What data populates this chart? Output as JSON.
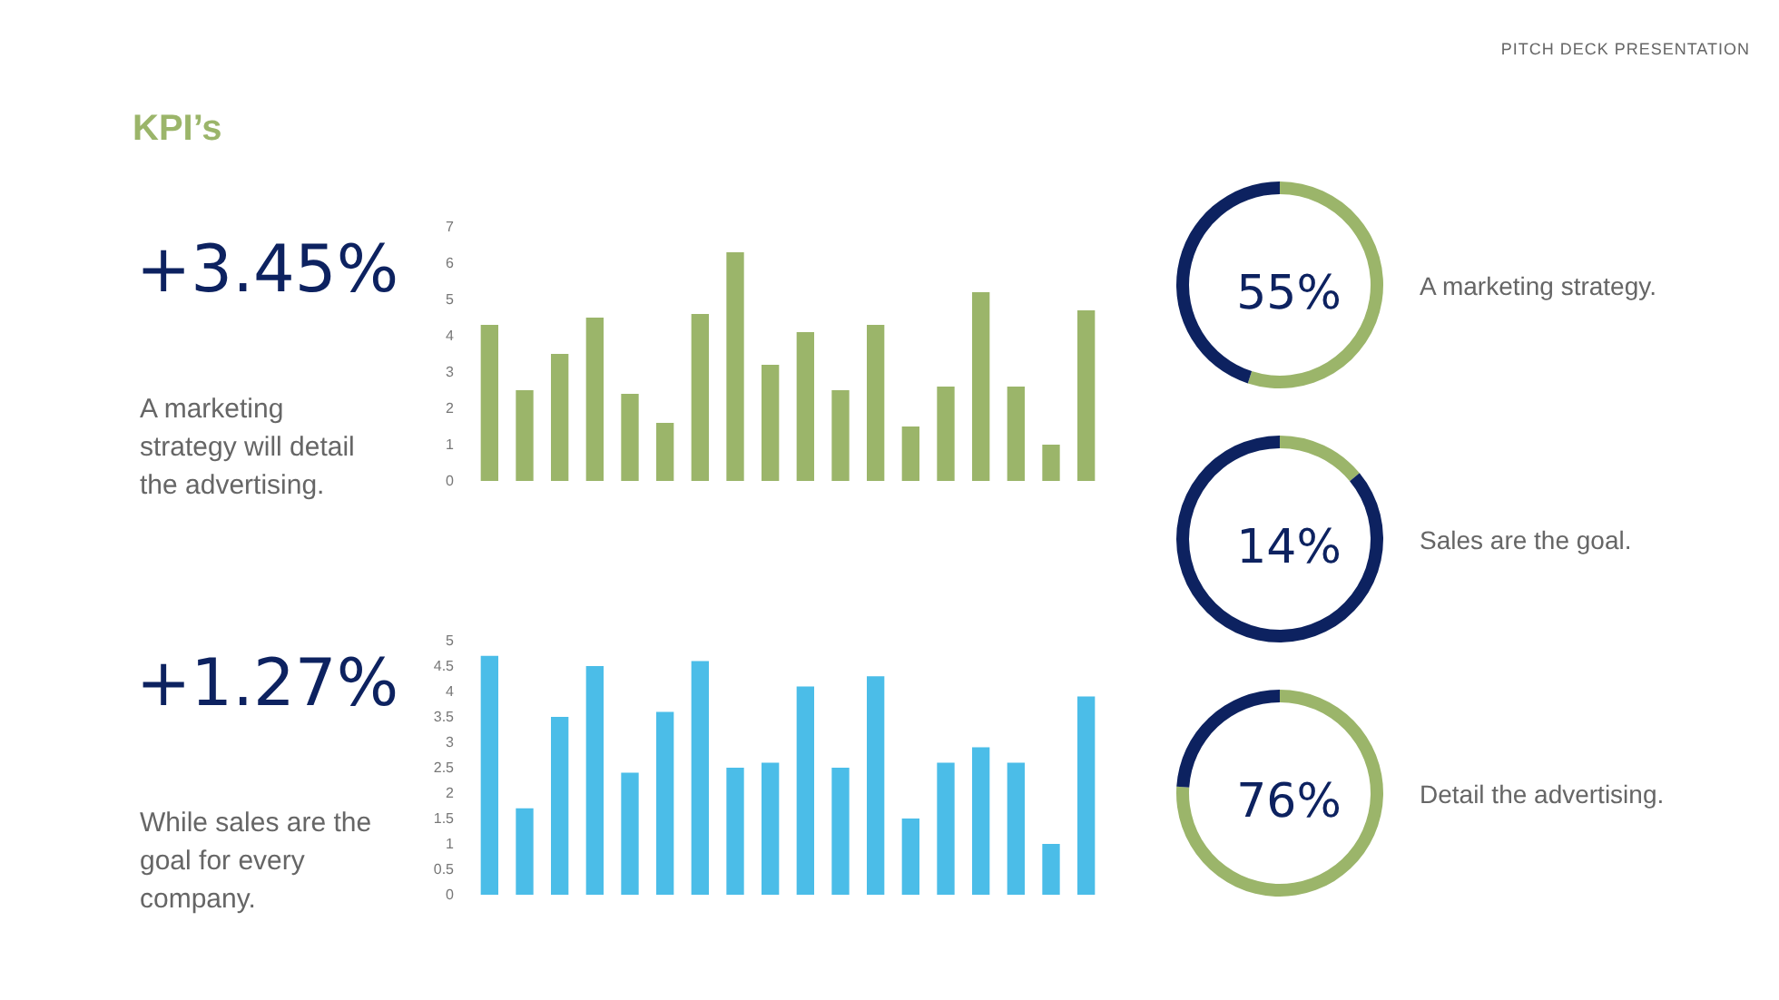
{
  "chart_data": [
    {
      "type": "other",
      "title": "KPI’s",
      "annotations": [
        "PITCH DECK PRESENTATION"
      ]
    },
    {
      "type": "bar",
      "title": "+3.45%",
      "subtitle": "A marketing strategy will detail the advertising.",
      "categories": [
        null,
        null,
        null,
        null,
        null,
        null,
        null,
        null,
        null,
        null,
        null,
        null,
        null,
        null,
        null,
        null,
        null,
        null
      ],
      "values": [
        4.3,
        2.5,
        3.5,
        4.5,
        2.4,
        1.6,
        4.6,
        6.3,
        3.2,
        4.1,
        2.5,
        4.3,
        1.5,
        2.6,
        5.2,
        2.6,
        1.0,
        4.7
      ],
      "color": "#9bb56a",
      "ylim": [
        0,
        7
      ],
      "yticks": [
        0,
        1,
        2,
        3,
        4,
        5,
        6,
        7
      ],
      "grid": false
    },
    {
      "type": "bar",
      "title": "+1.27%",
      "subtitle": "While sales are the goal for every company.",
      "categories": [
        null,
        null,
        null,
        null,
        null,
        null,
        null,
        null,
        null,
        null,
        null,
        null,
        null,
        null,
        null,
        null,
        null,
        null
      ],
      "values": [
        4.7,
        1.7,
        3.5,
        4.5,
        2.4,
        3.6,
        4.6,
        2.5,
        2.6,
        4.1,
        2.5,
        4.3,
        1.5,
        2.6,
        2.9,
        2.6,
        1.0,
        3.9
      ],
      "color": "#4bbde8",
      "ylim": [
        0,
        5
      ],
      "yticks": [
        0,
        0.5,
        1,
        1.5,
        2,
        2.5,
        3,
        3.5,
        4,
        4.5,
        5
      ],
      "grid": false
    },
    {
      "type": "donut",
      "title": "55%",
      "categories": [
        null,
        null
      ],
      "values": [
        55,
        45
      ],
      "colors": [
        "#9bb56a",
        "#0d2260"
      ],
      "annotations": [
        "A marketing strategy."
      ]
    },
    {
      "type": "donut",
      "title": "14%",
      "categories": [
        null,
        null
      ],
      "values": [
        14,
        86
      ],
      "colors": [
        "#9bb56a",
        "#0d2260"
      ],
      "annotations": [
        "Sales are the goal."
      ]
    },
    {
      "type": "donut",
      "title": "76%",
      "categories": [
        null,
        null
      ],
      "values": [
        76,
        24
      ],
      "colors": [
        "#9bb56a",
        "#0d2260"
      ],
      "annotations": [
        "Detail the advertising."
      ]
    }
  ]
}
